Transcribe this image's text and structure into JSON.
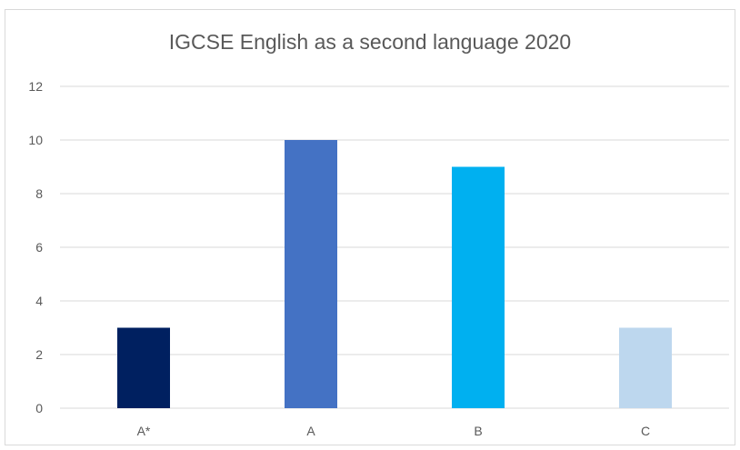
{
  "chart_data": {
    "type": "bar",
    "title": "IGCSE English as a second language 2020",
    "categories": [
      "A*",
      "A",
      "B",
      "C"
    ],
    "values": [
      3,
      10,
      9,
      3
    ],
    "colors": [
      "#002060",
      "#4472C4",
      "#00B0F0",
      "#BDD7EE"
    ],
    "ylim": [
      0,
      12
    ],
    "yticks": [
      0,
      2,
      4,
      6,
      8,
      10,
      12
    ],
    "xlabel": "",
    "ylabel": "",
    "grid": true,
    "legend": "none",
    "gridline_color": "#d9d9d9"
  }
}
